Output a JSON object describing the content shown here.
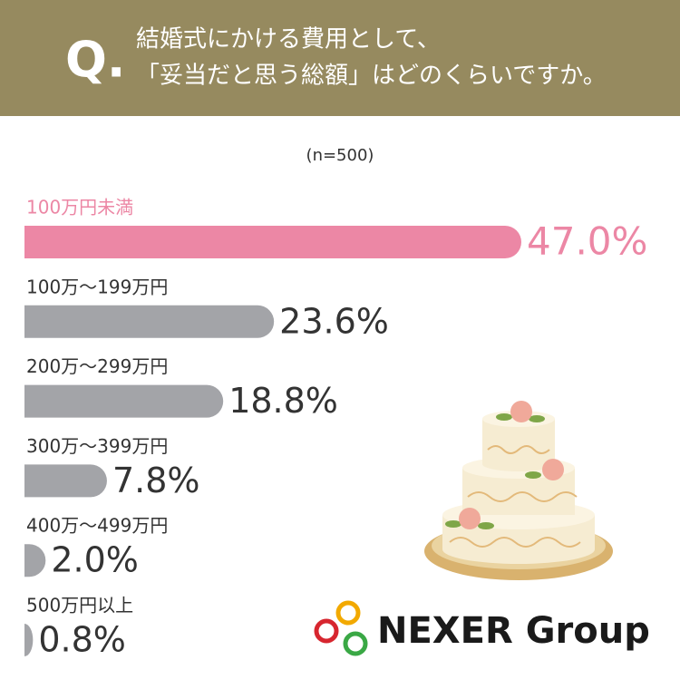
{
  "chart_data": {
    "type": "bar",
    "orientation": "horizontal",
    "title_prefix": "Q.",
    "title_lines": [
      "結婚式にかける費用として、",
      "「妥当だと思う総額」はどのくらいですか。"
    ],
    "subtitle": "(n=500)",
    "categories": [
      "100万円未満",
      "100万～199万円",
      "200万～299万円",
      "300万～399万円",
      "400万～499万円",
      "500万円以上"
    ],
    "values": [
      47.0,
      23.6,
      18.8,
      7.8,
      2.0,
      0.8
    ],
    "value_labels": [
      "47.0%",
      "23.6%",
      "18.8%",
      "7.8%",
      "2.0%",
      "0.8%"
    ],
    "colors": [
      "#ec87a5",
      "#a3a4a8",
      "#a3a4a8",
      "#a3a4a8",
      "#a3a4a8",
      "#a3a4a8"
    ],
    "label_colors": [
      "#ec87a5",
      "#333333",
      "#333333",
      "#333333",
      "#333333",
      "#333333"
    ],
    "logo": "NEXER Group"
  }
}
